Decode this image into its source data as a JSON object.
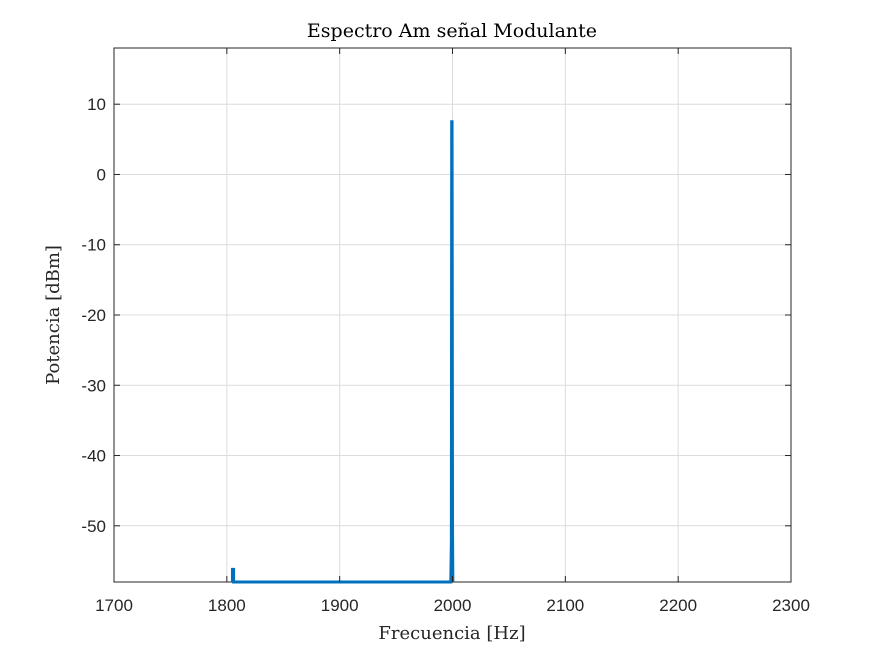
{
  "chart_data": {
    "type": "line",
    "title": "Espectro Am señal Modulante",
    "xlabel": "Frecuencia [Hz]",
    "ylabel": "Potencia [dBm]",
    "xlim": [
      1700,
      2300
    ],
    "ylim": [
      -58,
      18
    ],
    "xticks": [
      1700,
      1800,
      1900,
      2000,
      2100,
      2200,
      2300
    ],
    "xtick_labels": [
      "1700",
      "1800",
      "1900",
      "2000",
      "2100",
      "2200",
      "2300"
    ],
    "yticks": [
      10,
      0,
      -10,
      -20,
      -30,
      -40,
      -50
    ],
    "ytick_labels": [
      "10",
      "0",
      "-10",
      "-20",
      "-30",
      "-40",
      "-50"
    ],
    "grid": true,
    "series": [
      {
        "color": "#0072BD",
        "points": [
          [
            1805,
            -58
          ],
          [
            1805,
            -56.2
          ],
          [
            1806,
            -56.2
          ],
          [
            1806,
            -58
          ],
          [
            1998.5,
            -58
          ],
          [
            1999,
            -52
          ],
          [
            1999.3,
            7.5
          ],
          [
            1999.6,
            7.5
          ],
          [
            2000,
            -50
          ],
          [
            2000.3,
            -58
          ]
        ]
      }
    ]
  }
}
